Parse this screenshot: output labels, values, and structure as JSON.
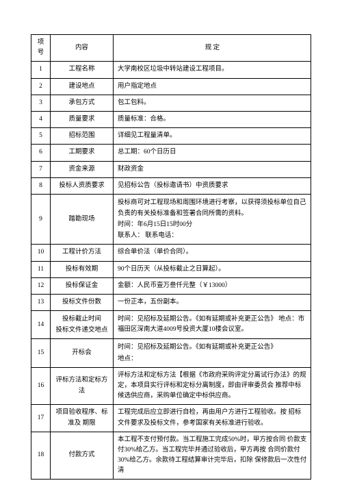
{
  "headers": {
    "num": "项号",
    "content": "内容",
    "desc": "规    定"
  },
  "rows": [
    {
      "num": "1",
      "content": "工程名称",
      "desc": "大学南校区垃圾中转站建设工程项目。"
    },
    {
      "num": "2",
      "content": "建设地点",
      "desc": "用户指定地点"
    },
    {
      "num": "3",
      "content": "承包方式",
      "desc": "包工包料。"
    },
    {
      "num": "4",
      "content": "质量要求",
      "desc": "质量标准：合格。"
    },
    {
      "num": "5",
      "content": "招标范围",
      "desc": "详细见工程量清单。"
    },
    {
      "num": "6",
      "content": "工期要求",
      "desc": "总工期：60个日历日"
    },
    {
      "num": "7",
      "content": "资金来源",
      "desc": "财政资金"
    },
    {
      "num": "8",
      "content": "投标人资质要求",
      "desc": "见招标公告（投标邀请书）中资质要求"
    },
    {
      "num": "9",
      "content": "踏勘现场",
      "desc": "投标商可对工程现场和周围环境进行考察，以获得须投标单位自己负责的有关投标准备和签署合同所需的资料。\n时间：年6月15日15时00分\n联系人：        联系电话："
    },
    {
      "num": "10",
      "content": "工程计价方法",
      "desc": "综合单价法（单价合同）。"
    },
    {
      "num": "11",
      "content": "投标有效期",
      "desc": "90个日历天（从投标截止之日算起）。"
    },
    {
      "num": "12",
      "content": "投标保证金",
      "desc": "金额：人民币壹万叁仟元整（￥13000）"
    },
    {
      "num": "13",
      "content": "投标文件份数",
      "desc": "一份正本，五份副本。"
    },
    {
      "num": "14",
      "content": "投标截止时间\n投标文件递交地点",
      "desc": "时间：见招标及延期公告。《如有延期或补充更正公告》 地点：市福田区深南大道4009号投资大厦10楼会议室。"
    },
    {
      "num": "15",
      "content": "开标会",
      "desc": "时间：见招标及延期公告。《如有延期或补充更正公告》\n地点："
    },
    {
      "num": "16",
      "content": "评标方法和定标方法",
      "desc": "评标方法和定标方法【根据《市政府采购评定分离试行办法》的规定，本项目实行评标和定标分离制度，即由评审委员会 推荐中标候选供应商，采购单位确定中标供应商。"
    },
    {
      "num": "17",
      "content": "项目验收程序、标准及 期限",
      "desc": "工程完成后应立即进行自检，再由用户方进行工程验收。按 招标文件要求及投标文件，参考国家有关标准进行验收。"
    },
    {
      "num": "18",
      "content": "付款方式",
      "desc": "本工程不支付预付款。当工程施工完成50%时，甲方按合同 价款支付30%给乙方。当工程完毕并通过验收后，甲方再按 合同价款付30%给乙方。余款待工程结算审计完毕后，扣除 保修款后一次性付清"
    }
  ],
  "styles": {
    "border_color": "#000000",
    "font_size": 9.5,
    "col_widths": {
      "num": 28,
      "content": 92
    }
  }
}
